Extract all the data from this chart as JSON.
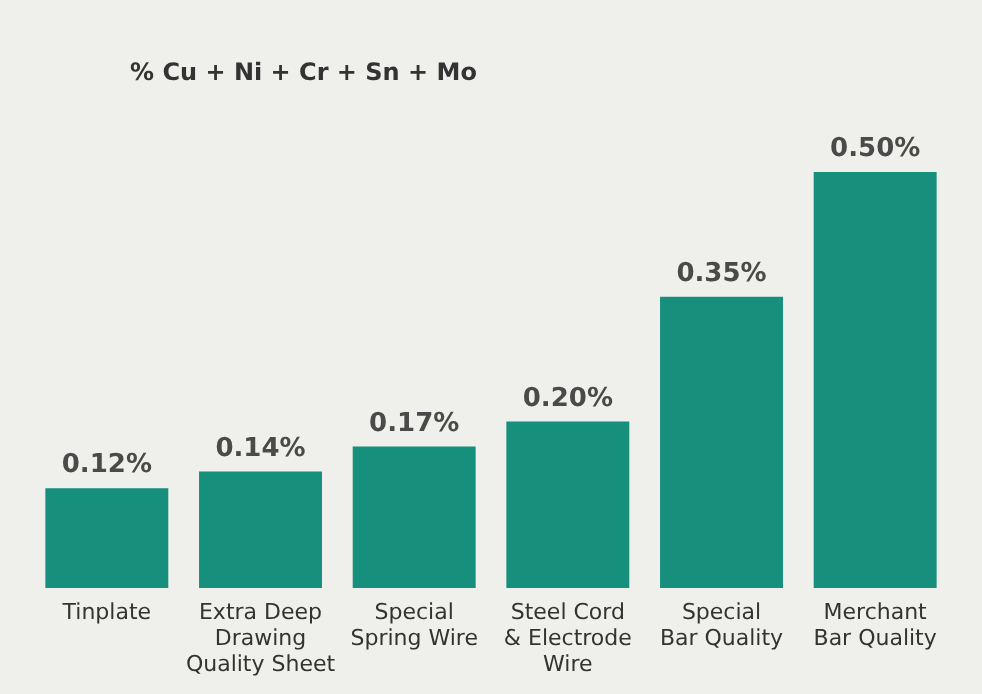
{
  "chart_data": {
    "type": "bar",
    "title": "% Cu + Ni + Cr + Sn + Mo",
    "categories": [
      "Tinplate",
      "Extra Deep\nDrawing\nQuality Sheet",
      "Special\nSpring Wire",
      "Steel Cord\n& Electrode\nWire",
      "Special\nBar Quality",
      "Merchant\nBar Quality"
    ],
    "values": [
      0.12,
      0.14,
      0.17,
      0.2,
      0.35,
      0.5
    ],
    "value_labels": [
      "0.12%",
      "0.14%",
      "0.17%",
      "0.20%",
      "0.35%",
      "0.50%"
    ],
    "color": "#168f7c",
    "grid": false
  }
}
